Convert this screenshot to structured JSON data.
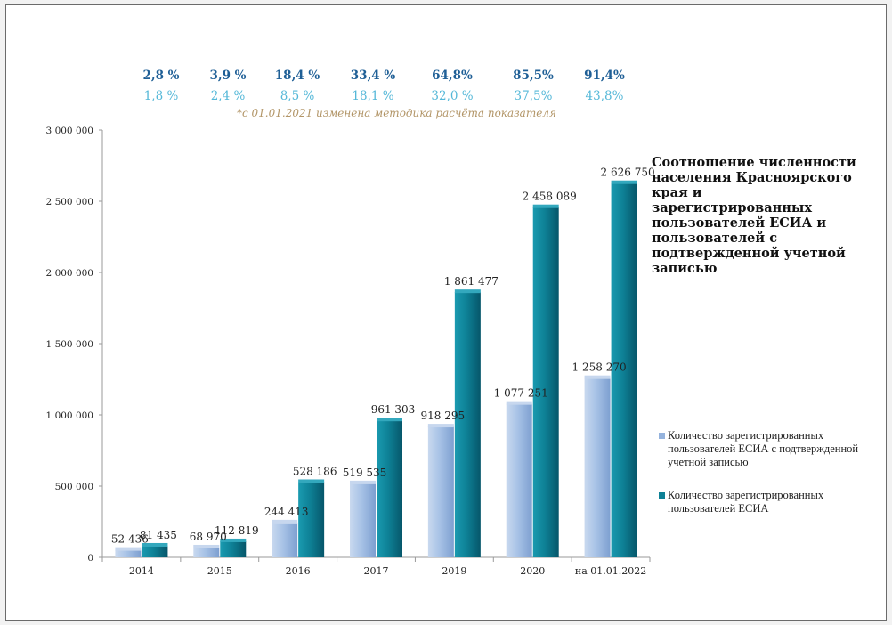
{
  "chart_data": {
    "type": "bar",
    "title": "Соотношение численности населения Красноярского края и зарегистрированных пользователей ЕСИА и пользователей с подтвержденной учетной записью",
    "categories": [
      "2014",
      "2015",
      "2016",
      "2017",
      "2019",
      "2020",
      "на 01.01.2022"
    ],
    "series": [
      {
        "name": "Количество зарегистрированных пользователей ЕСИА с подтвержденной учетной записью",
        "values": [
          52436,
          68970,
          244413,
          519535,
          918295,
          1077251,
          1258270
        ],
        "labels": [
          "52 436",
          "68 970",
          "244 413",
          "519 535",
          "918 295",
          "1 077 251",
          "1 258 270"
        ],
        "percents": [
          "1,8 %",
          "2,4 %",
          "8,5 %",
          "18,1 %",
          "32,0 %",
          "37,5%",
          "43,8%"
        ],
        "color": "#95b3dd"
      },
      {
        "name": "Количество зарегистрированных пользователей ЕСИА",
        "values": [
          81435,
          112819,
          528186,
          961303,
          1861477,
          2458089,
          2626750
        ],
        "labels": [
          "81 435",
          "112 819",
          "528 186",
          "961 303",
          "1 861 477",
          "2 458 089",
          "2 626 750"
        ],
        "percents": [
          "2,8 %",
          "3,9 %",
          "18,4 %",
          "33,4 %",
          "64,8%",
          "85,5%",
          "91,4%"
        ],
        "color": "#0e8196"
      }
    ],
    "yticks": [
      0,
      500000,
      1000000,
      1500000,
      2000000,
      2500000,
      3000000
    ],
    "ytick_labels": [
      "0",
      "500 000",
      "1 000 000",
      "1 500 000",
      "2 000 000",
      "2 500 000",
      "3 000 000"
    ],
    "ylim": [
      0,
      3000000
    ],
    "note": "*с 01.01.2021 изменена методика расчёта показателя",
    "colors": {
      "percent_dark": "#1f5f96",
      "percent_light": "#55b8d8",
      "note": "#b29567",
      "axis": "#9a9a9a"
    }
  }
}
